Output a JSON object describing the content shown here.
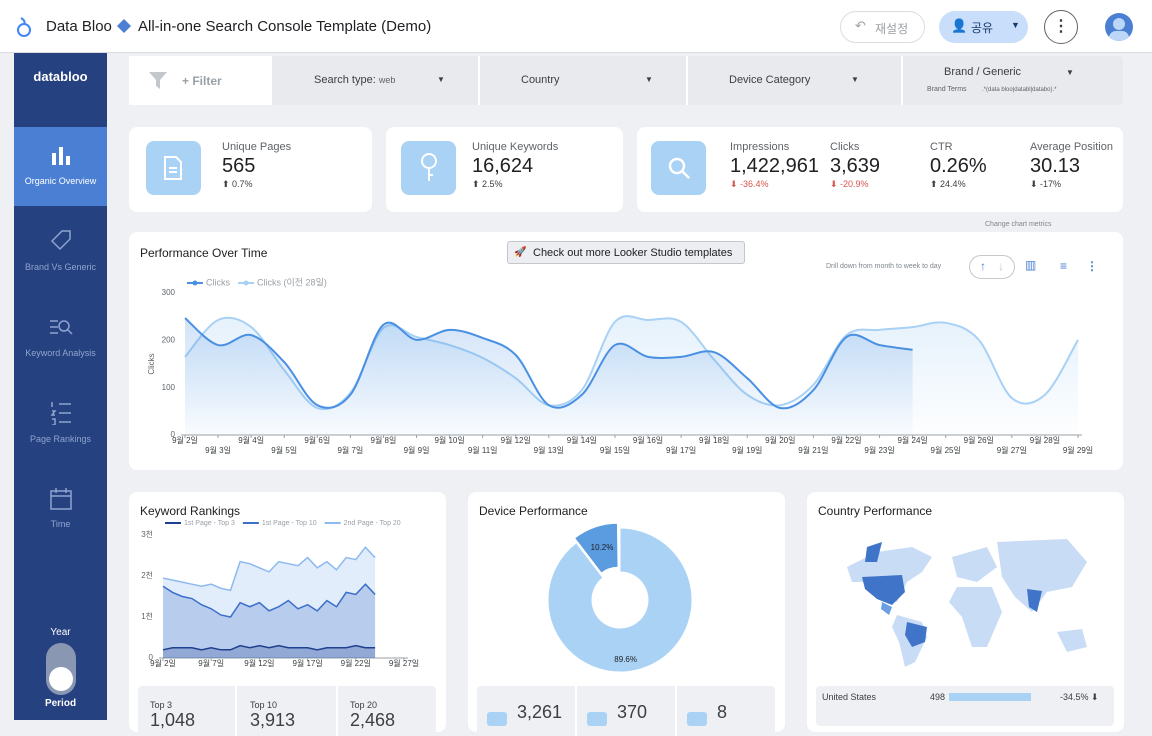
{
  "header": {
    "app_name": "Data Bloo",
    "title": "All-in-one Search Console Template (Demo)",
    "reset": "재설정",
    "share": "공유"
  },
  "sidebar": {
    "logo": "databloo",
    "items": [
      "Organic Overview",
      "Brand Vs Generic",
      "Keyword Analysis",
      "Page Rankings",
      "Time"
    ],
    "toggle_top": "Year",
    "toggle_bottom": "Period"
  },
  "filters": {
    "add": "+ Filter",
    "search_type_label": "Search type:",
    "search_type_value": "web",
    "country": "Country",
    "device": "Device Category",
    "brand": "Brand / Generic",
    "brand_terms_label": "Brand Terms",
    "brand_terms_value": ".*(data bloo|databl|databo).*"
  },
  "kpis": [
    {
      "label": "Unique Pages",
      "value": "565",
      "change": "0.7%"
    },
    {
      "label": "Unique Keywords",
      "value": "16,624",
      "change": "2.5%"
    },
    {
      "label": "Impressions",
      "value": "1,422,961",
      "change": "-36.4%"
    },
    {
      "label": "Clicks",
      "value": "3,639",
      "change": "-20.9%"
    },
    {
      "label": "CTR",
      "value": "0.26%",
      "change": "24.4%"
    },
    {
      "label": "Average Position",
      "value": "30.13",
      "change": "-17%"
    }
  ],
  "performance": {
    "type": "line",
    "title": "Performance Over Time",
    "button": "Check out more Looker Studio templates",
    "drill_hint": "Drill down from month to week to day",
    "metrics_hint": "Change chart metrics",
    "y_label": "Clicks",
    "categories": [
      "9월 2일",
      "9월 3일",
      "9월 4일",
      "9월 5일",
      "9월 6일",
      "9월 7일",
      "9월 8일",
      "9월 9일",
      "9월 10일",
      "9월 11일",
      "9월 12일",
      "9월 13일",
      "9월 14일",
      "9월 15일",
      "9월 16일",
      "9월 17일",
      "9월 18일",
      "9월 19일",
      "9월 20일",
      "9월 21일",
      "9월 22일",
      "9월 23일",
      "9월 24일",
      "9월 25일",
      "9월 26일",
      "9월 27일",
      "9월 28일",
      "9월 29일"
    ],
    "series": [
      {
        "name": "Clicks",
        "color": "#4a90e2",
        "values": [
          247,
          190,
          211,
          154,
          63,
          85,
          233,
          201,
          222,
          205,
          169,
          63,
          85,
          190,
          165,
          165,
          175,
          120,
          57,
          95,
          207,
          190,
          180,
          null,
          null,
          null,
          null,
          null
        ]
      },
      {
        "name": "Clicks (이전 28일)",
        "color": "#a8d1f5",
        "values": [
          165,
          243,
          228,
          137,
          57,
          89,
          226,
          207,
          190,
          163,
          120,
          63,
          95,
          239,
          243,
          239,
          159,
          85,
          63,
          106,
          211,
          222,
          228,
          237,
          201,
          78,
          85,
          201
        ]
      }
    ],
    "ylim": [
      0,
      300
    ],
    "yticks": [
      0,
      100,
      200,
      300
    ],
    "grid": false
  },
  "keywords": {
    "type": "line",
    "title": "Keyword Rankings",
    "categories": [
      "9월 2일",
      null,
      null,
      null,
      null,
      "9월 7일",
      null,
      null,
      null,
      null,
      "9월 12일",
      null,
      null,
      null,
      null,
      "9월 17일",
      null,
      null,
      null,
      null,
      "9월 22일",
      null,
      null,
      null,
      null,
      "9월 27일"
    ],
    "series": [
      {
        "name": "1st Page - Top 3",
        "color": "#1f3f8f",
        "values": [
          200,
          250,
          250,
          250,
          200,
          250,
          200,
          200,
          300,
          250,
          300,
          250,
          300,
          250,
          250,
          250,
          200,
          250,
          250,
          250,
          300,
          250,
          250,
          null,
          null,
          null
        ]
      },
      {
        "name": "1st Page - Top 10",
        "color": "#3b6fc9",
        "values": [
          1750,
          1600,
          1500,
          1450,
          1300,
          1200,
          1050,
          1000,
          1350,
          1250,
          1350,
          1150,
          1250,
          1400,
          1200,
          1300,
          1150,
          1400,
          1250,
          1600,
          1550,
          1800,
          1550,
          null,
          null,
          null
        ]
      },
      {
        "name": "2nd Page - Top 20",
        "color": "#8cb9ee",
        "values": [
          1950,
          1900,
          1850,
          1800,
          1750,
          1800,
          1700,
          1650,
          2350,
          2300,
          2200,
          2100,
          2350,
          2300,
          2250,
          2450,
          2200,
          2350,
          2150,
          2450,
          2400,
          2700,
          2450,
          null,
          null,
          null
        ]
      }
    ],
    "ylim": [
      0,
      3000
    ],
    "yticks": [
      0,
      {
        "value": 1000,
        "label": "1천"
      },
      {
        "value": 2000,
        "label": "2천"
      },
      {
        "value": 3000,
        "label": "3천"
      }
    ],
    "totals": [
      {
        "label": "Top 3",
        "value": "1,048"
      },
      {
        "label": "Top 10",
        "value": "3,913"
      },
      {
        "label": "Top 20",
        "value": "2,468"
      }
    ]
  },
  "devices": {
    "type": "pie",
    "title": "Device Performance",
    "values": [
      89.6,
      10.2
    ],
    "value_labels": [
      "89.6%",
      "10.2%"
    ],
    "colors": [
      "#a9d2f5",
      "#5b9be0"
    ],
    "totals": [
      "3,261",
      "370",
      "8"
    ]
  },
  "countries": {
    "title": "Country Performance",
    "rows": [
      {
        "country": "United States",
        "clicks": "498",
        "change": "-34.5%"
      }
    ]
  }
}
